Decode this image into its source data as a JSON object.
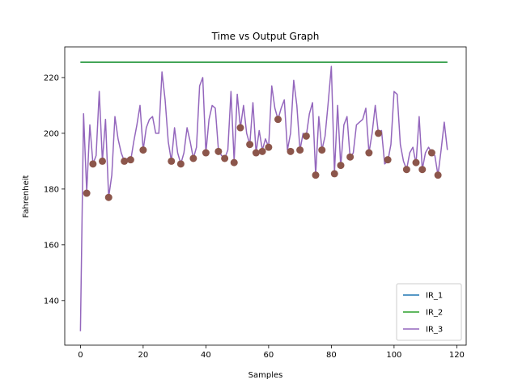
{
  "chart_data": {
    "type": "line",
    "title": "Time vs Output Graph",
    "xlabel": "Samples",
    "ylabel": "Fahrenheit",
    "xlim": [
      -5,
      123
    ],
    "ylim": [
      124,
      231
    ],
    "xticks": [
      0,
      20,
      40,
      60,
      80,
      100,
      120
    ],
    "yticks": [
      140,
      160,
      180,
      200,
      220
    ],
    "grid": false,
    "legend_position": "lower-right",
    "series": [
      {
        "name": "IR_1",
        "color": "#1f77b4",
        "x": [
          0,
          117
        ],
        "values": [
          225.5,
          225.5
        ]
      },
      {
        "name": "IR_2",
        "color": "#2ca02c",
        "x": [
          0,
          117
        ],
        "values": [
          225.5,
          225.5
        ]
      },
      {
        "name": "IR_3",
        "color": "#9467bd",
        "x": [
          0,
          1,
          2,
          3,
          4,
          5,
          6,
          7,
          8,
          9,
          10,
          11,
          12,
          13,
          14,
          15,
          16,
          17,
          18,
          19,
          20,
          21,
          22,
          23,
          24,
          25,
          26,
          27,
          28,
          29,
          30,
          31,
          32,
          33,
          34,
          35,
          36,
          37,
          38,
          39,
          40,
          41,
          42,
          43,
          44,
          45,
          46,
          47,
          48,
          49,
          50,
          51,
          52,
          53,
          54,
          55,
          56,
          57,
          58,
          59,
          60,
          61,
          62,
          63,
          64,
          65,
          66,
          67,
          68,
          69,
          70,
          71,
          72,
          73,
          74,
          75,
          76,
          77,
          78,
          79,
          80,
          81,
          82,
          83,
          84,
          85,
          86,
          87,
          88,
          89,
          90,
          91,
          92,
          93,
          94,
          95,
          96,
          97,
          98,
          99,
          100,
          101,
          102,
          103,
          104,
          105,
          106,
          107,
          108,
          109,
          110,
          111,
          112,
          113,
          114,
          115,
          116,
          117
        ],
        "values": [
          129,
          207,
          179,
          203,
          189,
          192,
          215,
          190,
          205,
          177,
          185,
          206,
          198,
          193,
          190,
          191,
          190,
          197,
          203,
          210,
          194,
          202,
          205,
          206,
          200,
          200,
          222,
          212,
          197,
          190,
          202,
          193,
          189,
          193,
          202,
          197,
          191,
          195,
          217,
          220,
          193,
          205,
          210,
          209,
          194,
          192,
          191,
          194,
          215,
          190,
          214,
          202,
          210,
          200,
          196,
          211,
          193,
          201,
          194,
          198,
          195,
          217,
          209,
          205,
          209,
          212,
          194,
          200,
          219,
          210,
          194,
          200,
          199,
          207,
          211,
          185,
          206,
          194,
          199,
          211,
          224,
          186,
          210,
          188,
          203,
          206,
          191,
          193,
          203,
          204,
          205,
          209,
          193,
          200,
          210,
          200,
          201,
          189,
          190,
          196,
          215,
          214,
          196,
          190,
          187,
          193,
          195,
          189,
          206,
          187,
          193,
          195,
          193,
          192,
          185,
          194,
          204,
          194
        ]
      }
    ],
    "markers": {
      "color": "#8c564b",
      "x": [
        2,
        4,
        7,
        9,
        14,
        16,
        20,
        29,
        32,
        36,
        40,
        44,
        46,
        49,
        51,
        54,
        56,
        58,
        60,
        63,
        67,
        70,
        72,
        75,
        77,
        81,
        83,
        86,
        92,
        95,
        98,
        104,
        107,
        109,
        112,
        114
      ],
      "values": [
        178.5,
        189,
        190,
        177,
        190,
        190.5,
        194,
        190,
        189,
        191,
        193,
        193.5,
        191,
        189.5,
        202,
        196,
        193,
        193.5,
        195,
        205,
        193.5,
        194,
        199,
        185,
        194,
        185.5,
        188.5,
        191.5,
        193,
        200,
        190.5,
        187,
        189.5,
        187,
        193,
        185
      ]
    }
  }
}
